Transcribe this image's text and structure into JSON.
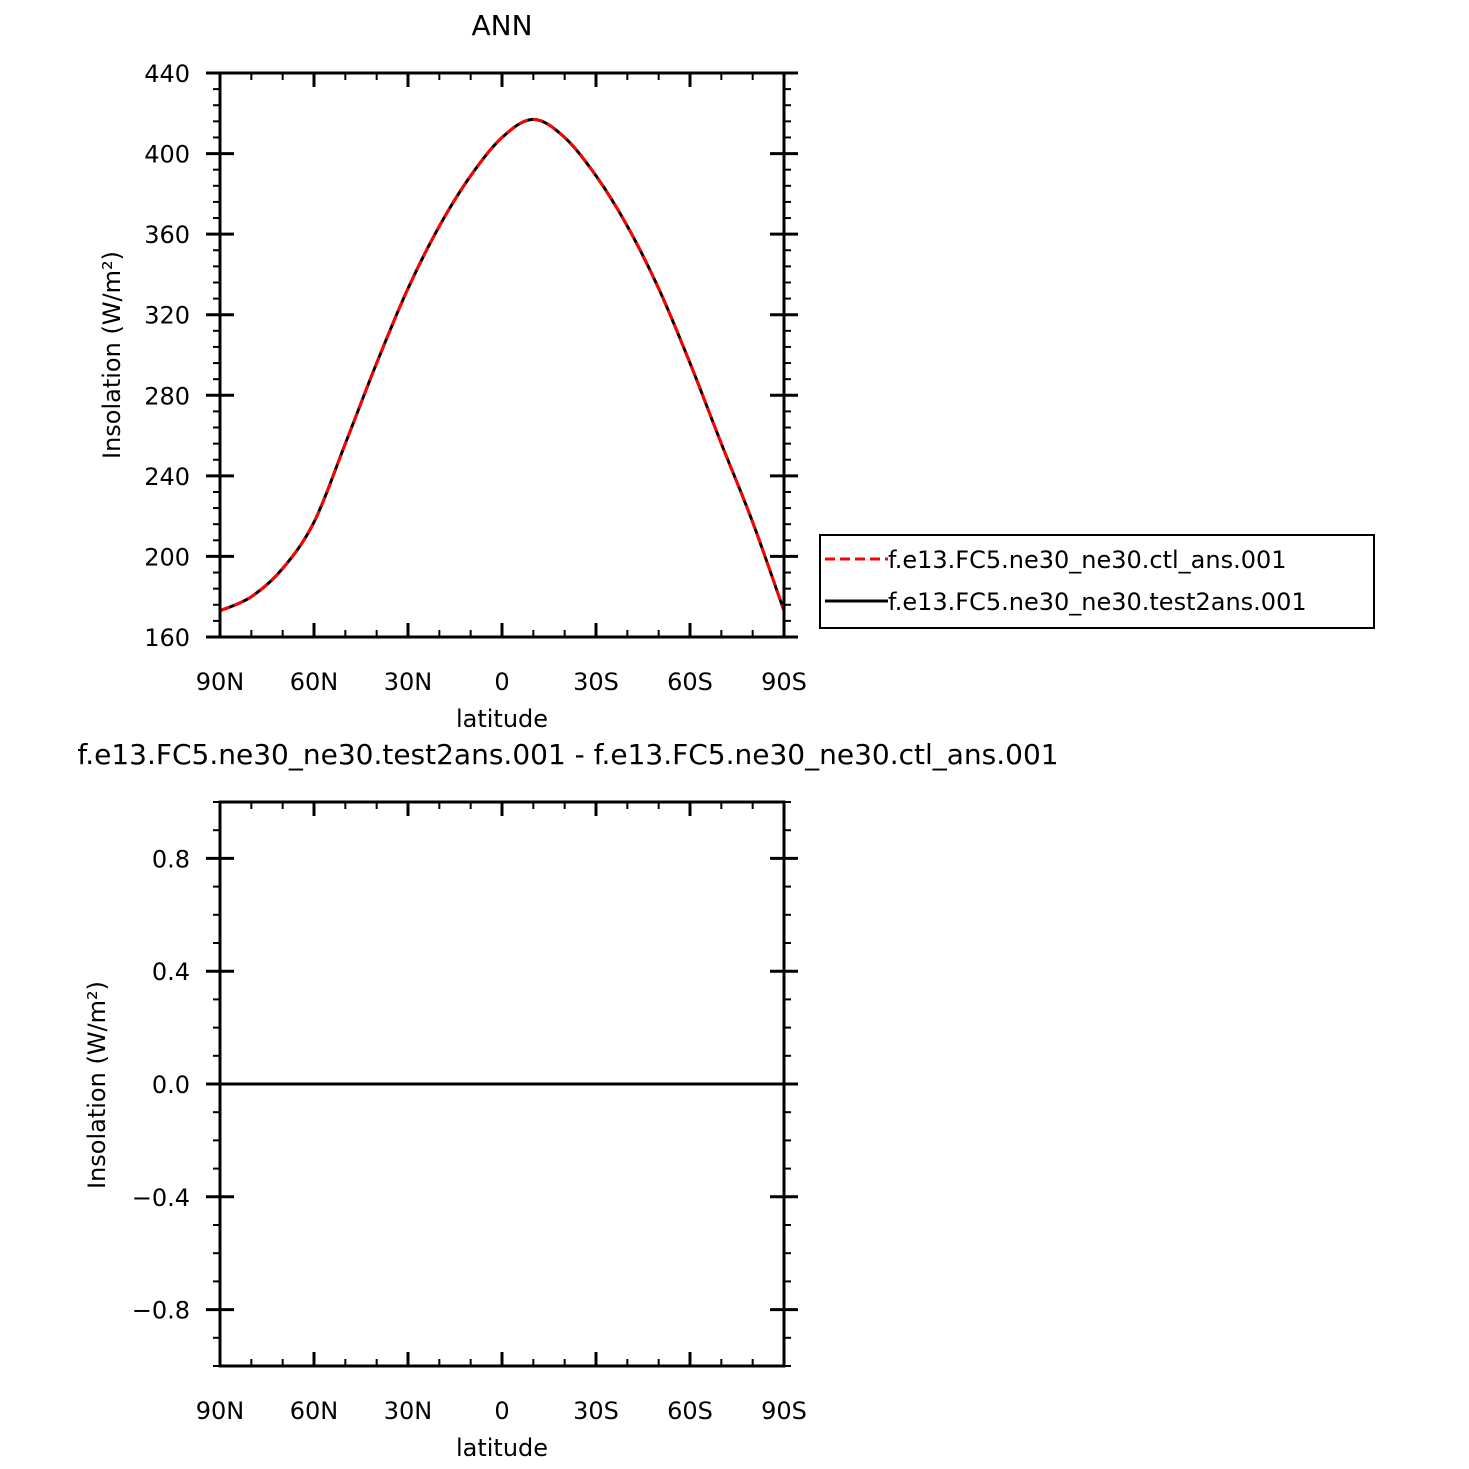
{
  "chart_data": [
    {
      "type": "line",
      "title": "ANN",
      "xlabel": "latitude",
      "ylabel": "Insolation (W/m²)",
      "ylim": [
        160,
        440
      ],
      "yticks": [
        "160",
        "200",
        "240",
        "280",
        "320",
        "360",
        "400",
        "440"
      ],
      "xlim": [
        90,
        -90
      ],
      "xticks": [
        {
          "value": 90,
          "label": "90N"
        },
        {
          "value": 60,
          "label": "60N"
        },
        {
          "value": 30,
          "label": "30N"
        },
        {
          "value": 0,
          "label": "0"
        },
        {
          "value": -30,
          "label": "30S"
        },
        {
          "value": -60,
          "label": "60S"
        },
        {
          "value": -90,
          "label": "90S"
        }
      ],
      "x": [
        90,
        80,
        70,
        60,
        50,
        40,
        30,
        20,
        10,
        0,
        -10,
        -20,
        -30,
        -40,
        -50,
        -60,
        -70,
        -80,
        -90
      ],
      "series": [
        {
          "name": "f.e13.FC5.ne30_ne30.ctl_ans.001",
          "color": "#ff0000",
          "dash": "dashed",
          "values": [
            173,
            180,
            194,
            217,
            256,
            296,
            333,
            364,
            389,
            408,
            417,
            408,
            389,
            364,
            333,
            296,
            256,
            217,
            173
          ]
        },
        {
          "name": "f.e13.FC5.ne30_ne30.test2ans.001",
          "color": "#000000",
          "dash": "solid",
          "values": [
            173,
            180,
            194,
            217,
            256,
            296,
            333,
            364,
            389,
            408,
            417,
            408,
            389,
            364,
            333,
            296,
            256,
            217,
            173
          ]
        }
      ],
      "legend": "right"
    },
    {
      "type": "line",
      "title": "f.e13.FC5.ne30_ne30.test2ans.001 - f.e13.FC5.ne30_ne30.ctl_ans.001",
      "xlabel": "latitude",
      "ylabel": "Insolation (W/m²)",
      "ylim": [
        -1,
        1
      ],
      "yticks": [
        "-0.8",
        "-0.4",
        "0.0",
        "0.4",
        "0.8"
      ],
      "xlim": [
        90,
        -90
      ],
      "xticks": [
        {
          "value": 90,
          "label": "90N"
        },
        {
          "value": 60,
          "label": "60N"
        },
        {
          "value": 30,
          "label": "30N"
        },
        {
          "value": 0,
          "label": "0"
        },
        {
          "value": -30,
          "label": "30S"
        },
        {
          "value": -60,
          "label": "60S"
        },
        {
          "value": -90,
          "label": "90S"
        }
      ],
      "x": [
        90,
        -90
      ],
      "series": [
        {
          "color": "#000000",
          "dash": "solid",
          "values": [
            0,
            0
          ]
        }
      ]
    }
  ]
}
